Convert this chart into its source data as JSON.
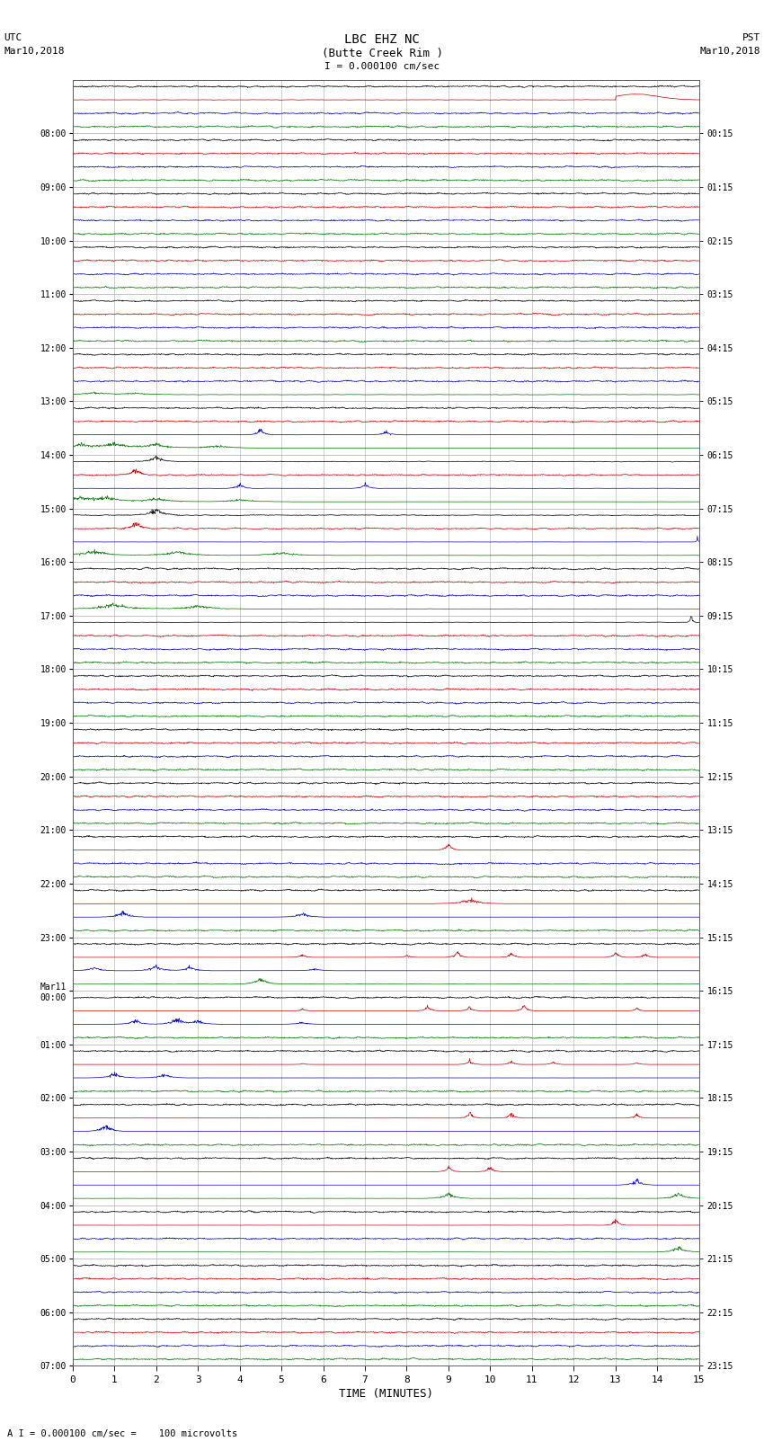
{
  "title_line1": "LBC EHZ NC",
  "title_line2": "(Butte Creek Rim )",
  "scale_label": "I = 0.000100 cm/sec",
  "left_label_1": "UTC",
  "left_label_2": "Mar10,2018",
  "right_label_1": "PST",
  "right_label_2": "Mar10,2018",
  "bottom_label": "TIME (MINUTES)",
  "footnote": "A I = 0.000100 cm/sec =    100 microvolts",
  "utc_times": [
    "08:00",
    "09:00",
    "10:00",
    "11:00",
    "12:00",
    "13:00",
    "14:00",
    "15:00",
    "16:00",
    "17:00",
    "18:00",
    "19:00",
    "20:00",
    "21:00",
    "22:00",
    "23:00",
    "Mar11\n00:00",
    "01:00",
    "02:00",
    "03:00",
    "04:00",
    "05:00",
    "06:00",
    "07:00"
  ],
  "pst_times": [
    "00:15",
    "01:15",
    "02:15",
    "03:15",
    "04:15",
    "05:15",
    "06:15",
    "07:15",
    "08:15",
    "09:15",
    "10:15",
    "11:15",
    "12:15",
    "13:15",
    "14:15",
    "15:15",
    "16:15",
    "17:15",
    "18:15",
    "19:15",
    "20:15",
    "21:15",
    "22:15",
    "23:15"
  ],
  "n_hour_groups": 24,
  "traces_per_group": 4,
  "minutes": 15,
  "bg_color": "#ffffff",
  "black": "#000000",
  "red": "#cc0000",
  "blue": "#0000cc",
  "green": "#007700",
  "grid_color": "#aaaaaa",
  "fig_width": 8.5,
  "fig_height": 16.13
}
